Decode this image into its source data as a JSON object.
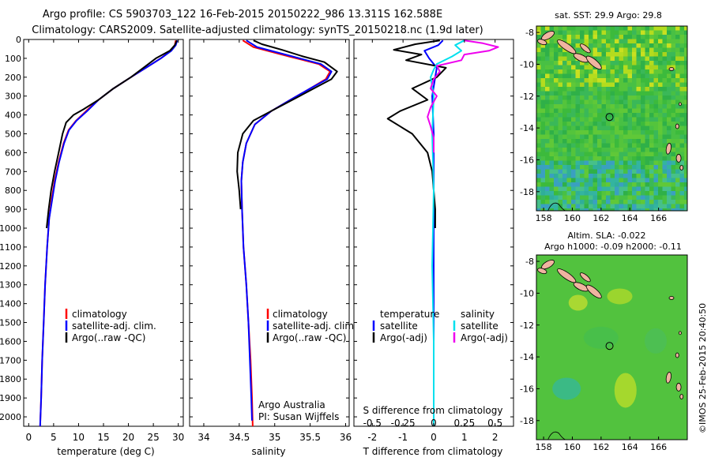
{
  "header": {
    "title_line1": "Argo profile: CS 5903703_122 16-Feb-2015 20150222_986 13.311S 162.588E",
    "title_line2": "Climatology: CARS2009. Satellite-adjusted climatology: synTS_20150218.nc (1.9d later)"
  },
  "colors": {
    "climatology": "#ff0000",
    "satellite": "#0000ff",
    "argo": "#000000",
    "sal_satellite": "#00e0ee",
    "sal_argo": "#ee00ee",
    "land": "#f0b4a0"
  },
  "credit": {
    "text": "Argo Australia",
    "pi": "PI: Susan Wijffels"
  },
  "timestamp": "©IMOS 25-Feb-2015 20:40:50",
  "chart_data": [
    {
      "type": "line",
      "id": "temperature",
      "xlabel": "temperature (deg C)",
      "ylabel": "",
      "xlim": [
        -1,
        31
      ],
      "ylim": [
        2050,
        0
      ],
      "xticks": [
        0,
        5,
        10,
        15,
        20,
        25,
        30
      ],
      "yticks": [
        0,
        100,
        200,
        300,
        400,
        500,
        600,
        700,
        800,
        900,
        1000,
        1100,
        1200,
        1300,
        1400,
        1500,
        1600,
        1700,
        1800,
        1900,
        2000
      ],
      "legend": [
        "climatology",
        "satellite-adj. clim.",
        "Argo(..raw -QC)"
      ],
      "series": [
        {
          "name": "climatology",
          "color": "#ff0000",
          "points": [
            [
              29.5,
              5
            ],
            [
              29.3,
              30
            ],
            [
              28.5,
              60
            ],
            [
              26.5,
              100
            ],
            [
              23.5,
              150
            ],
            [
              20.5,
              200
            ],
            [
              17,
              260
            ],
            [
              14,
              320
            ],
            [
              11.5,
              380
            ],
            [
              9.5,
              430
            ],
            [
              8,
              480
            ],
            [
              7,
              550
            ],
            [
              6,
              650
            ],
            [
              5.2,
              750
            ],
            [
              4.6,
              850
            ],
            [
              4.1,
              950
            ],
            [
              3.7,
              1100
            ],
            [
              3.3,
              1300
            ],
            [
              3,
              1500
            ],
            [
              2.7,
              1700
            ],
            [
              2.5,
              1900
            ],
            [
              2.3,
              2050
            ]
          ]
        },
        {
          "name": "satellite-adj. clim.",
          "color": "#0000ff",
          "points": [
            [
              29.8,
              5
            ],
            [
              29.5,
              30
            ],
            [
              28.6,
              60
            ],
            [
              26.5,
              100
            ],
            [
              23.5,
              150
            ],
            [
              20.5,
              200
            ],
            [
              17,
              260
            ],
            [
              14,
              320
            ],
            [
              11.7,
              380
            ],
            [
              9.6,
              430
            ],
            [
              8.1,
              480
            ],
            [
              7.1,
              550
            ],
            [
              6.1,
              650
            ],
            [
              5.3,
              750
            ],
            [
              4.7,
              850
            ],
            [
              4.1,
              950
            ],
            [
              3.7,
              1100
            ],
            [
              3.3,
              1300
            ],
            [
              3,
              1500
            ],
            [
              2.7,
              1700
            ],
            [
              2.5,
              1900
            ],
            [
              2.3,
              2050
            ]
          ]
        },
        {
          "name": "Argo(..raw -QC)",
          "color": "#000000",
          "points": [
            [
              29.7,
              5
            ],
            [
              29.3,
              30
            ],
            [
              28.3,
              60
            ],
            [
              25.5,
              100
            ],
            [
              23,
              150
            ],
            [
              20.5,
              200
            ],
            [
              17,
              260
            ],
            [
              14,
              320
            ],
            [
              11,
              370
            ],
            [
              9,
              400
            ],
            [
              7.5,
              440
            ],
            [
              6.8,
              500
            ],
            [
              6,
              600
            ],
            [
              5.2,
              700
            ],
            [
              4.5,
              800
            ],
            [
              4,
              900
            ],
            [
              3.6,
              1000
            ]
          ]
        }
      ]
    },
    {
      "type": "line",
      "id": "salinity",
      "xlabel": "salinity",
      "ylabel": "",
      "xlim": [
        33.8,
        36.05
      ],
      "ylim": [
        2050,
        0
      ],
      "xticks": [
        34,
        34.5,
        35,
        35.5,
        36
      ],
      "legend": [
        "climatology",
        "satellite-adj. clim.",
        "Argo(..raw -QC)"
      ],
      "series": [
        {
          "name": "climatology",
          "color": "#ff0000",
          "points": [
            [
              34.55,
              5
            ],
            [
              34.7,
              40
            ],
            [
              35.2,
              90
            ],
            [
              35.62,
              130
            ],
            [
              35.78,
              170
            ],
            [
              35.72,
              210
            ],
            [
              35.5,
              260
            ],
            [
              35.22,
              320
            ],
            [
              34.95,
              380
            ],
            [
              34.72,
              450
            ],
            [
              34.6,
              550
            ],
            [
              34.55,
              650
            ],
            [
              34.53,
              750
            ],
            [
              34.54,
              900
            ],
            [
              34.56,
              1100
            ],
            [
              34.6,
              1300
            ],
            [
              34.63,
              1500
            ],
            [
              34.66,
              1700
            ],
            [
              34.68,
              1900
            ],
            [
              34.69,
              2050
            ]
          ]
        },
        {
          "name": "satellite-adj. clim.",
          "color": "#0000ff",
          "points": [
            [
              34.6,
              5
            ],
            [
              34.75,
              40
            ],
            [
              35.25,
              90
            ],
            [
              35.65,
              130
            ],
            [
              35.8,
              170
            ],
            [
              35.74,
              210
            ],
            [
              35.5,
              260
            ],
            [
              35.22,
              320
            ],
            [
              34.95,
              380
            ],
            [
              34.72,
              450
            ],
            [
              34.6,
              550
            ],
            [
              34.55,
              650
            ],
            [
              34.53,
              750
            ],
            [
              34.54,
              900
            ],
            [
              34.56,
              1100
            ],
            [
              34.6,
              1300
            ],
            [
              34.63,
              1500
            ],
            [
              34.65,
              1700
            ],
            [
              34.67,
              1900
            ],
            [
              34.68,
              2020
            ]
          ]
        },
        {
          "name": "Argo(..raw -QC)",
          "color": "#000000",
          "points": [
            [
              34.7,
              5
            ],
            [
              34.82,
              25
            ],
            [
              35.1,
              55
            ],
            [
              35.4,
              90
            ],
            [
              35.7,
              120
            ],
            [
              35.88,
              170
            ],
            [
              35.8,
              210
            ],
            [
              35.6,
              250
            ],
            [
              35.3,
              310
            ],
            [
              35,
              370
            ],
            [
              34.7,
              430
            ],
            [
              34.55,
              500
            ],
            [
              34.48,
              600
            ],
            [
              34.47,
              700
            ],
            [
              34.5,
              800
            ],
            [
              34.52,
              900
            ]
          ]
        }
      ]
    },
    {
      "type": "line",
      "id": "difference",
      "xlabel": "T difference from climatology",
      "xlabel_top": "S difference from climatology",
      "ylabel": "",
      "xlim": [
        -2.6,
        2.6
      ],
      "ylim": [
        2050,
        0
      ],
      "xticks": [
        -2,
        -1,
        0,
        1,
        2
      ],
      "s_ticks": [
        "-0.5",
        "-0.25",
        "0",
        "0.25",
        "0.5"
      ],
      "legend_temperature": [
        "temperature",
        "satellite",
        "Argo(-adj)"
      ],
      "legend_salinity": [
        "salinity",
        "satellite",
        "Argo(-adj)"
      ],
      "series": [
        {
          "name": "satellite",
          "color": "#0000ff",
          "points": [
            [
              0.3,
              5
            ],
            [
              0.15,
              30
            ],
            [
              -0.3,
              60
            ],
            [
              -0.15,
              100
            ],
            [
              0.1,
              150
            ],
            [
              0.05,
              200
            ],
            [
              -0.05,
              300
            ],
            [
              0,
              500
            ],
            [
              0,
              800
            ],
            [
              0,
              1200
            ],
            [
              0,
              2050
            ]
          ]
        },
        {
          "name": "Argo(-adj)",
          "color": "#000000",
          "points": [
            [
              0.2,
              5
            ],
            [
              -0.6,
              25
            ],
            [
              -1.3,
              55
            ],
            [
              -0.4,
              80
            ],
            [
              -0.9,
              110
            ],
            [
              0.4,
              150
            ],
            [
              0.1,
              200
            ],
            [
              -0.7,
              260
            ],
            [
              -0.2,
              320
            ],
            [
              -1.1,
              380
            ],
            [
              -1.5,
              420
            ],
            [
              -0.7,
              500
            ],
            [
              -0.2,
              600
            ],
            [
              -0.05,
              700
            ],
            [
              0,
              800
            ],
            [
              0.05,
              900
            ],
            [
              0.05,
              1000
            ]
          ]
        },
        {
          "name": "satellite",
          "color": "#00e0ee",
          "points": [
            [
              1,
              5
            ],
            [
              0.7,
              30
            ],
            [
              0.9,
              60
            ],
            [
              0.6,
              90
            ],
            [
              0.1,
              130
            ],
            [
              0,
              160
            ],
            [
              -0.1,
              200
            ],
            [
              0,
              300
            ],
            [
              -0.05,
              500
            ],
            [
              0,
              800
            ],
            [
              -0.05,
              1200
            ],
            [
              0,
              1600
            ],
            [
              0,
              2050
            ]
          ]
        },
        {
          "name": "Argo(-adj)",
          "color": "#ee00ee",
          "points": [
            [
              1,
              5
            ],
            [
              1.6,
              20
            ],
            [
              2.1,
              40
            ],
            [
              1.8,
              60
            ],
            [
              1,
              80
            ],
            [
              0.9,
              110
            ],
            [
              0.1,
              140
            ],
            [
              0.2,
              170
            ],
            [
              0,
              210
            ],
            [
              -0.1,
              260
            ],
            [
              0.1,
              300
            ],
            [
              -0.1,
              360
            ],
            [
              -0.2,
              410
            ],
            [
              -0.1,
              460
            ],
            [
              0,
              520
            ],
            [
              0,
              600
            ]
          ]
        }
      ]
    },
    {
      "type": "heatmap",
      "id": "sst-map",
      "title": "sat. SST: 29.9 Argo: 29.8",
      "xlim": [
        157.5,
        168
      ],
      "ylim": [
        -19.2,
        -7.6
      ],
      "xticks": [
        158,
        160,
        162,
        164,
        166
      ],
      "yticks": [
        -8,
        -10,
        -12,
        -14,
        -16,
        -18
      ],
      "marker": {
        "lon": 162.588,
        "lat": -13.311
      }
    },
    {
      "type": "heatmap",
      "id": "sla-map",
      "title": "Altim. SLA: -0.022",
      "subtitle": "Argo h1000: -0.09 h2000: -0.11",
      "xlim": [
        157.5,
        168
      ],
      "ylim": [
        -19.2,
        -7.6
      ],
      "xticks": [
        158,
        160,
        162,
        164,
        166
      ],
      "yticks": [
        -8,
        -10,
        -12,
        -14,
        -16,
        -18
      ],
      "marker": {
        "lon": 162.588,
        "lat": -13.311
      }
    }
  ]
}
